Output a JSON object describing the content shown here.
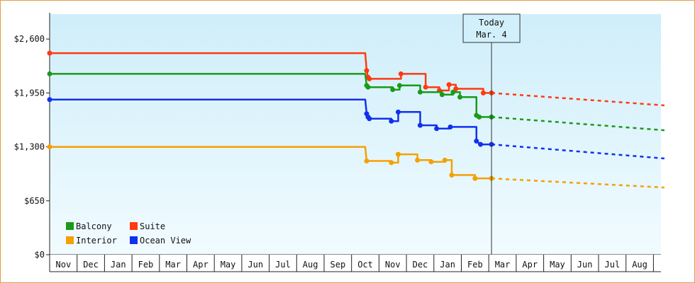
{
  "chart_data": {
    "type": "line",
    "title": "",
    "xlabel": "",
    "ylabel": "",
    "ylim": [
      0,
      2900
    ],
    "y_ticks": [
      "$0",
      "$650",
      "$1,300",
      "$1,950",
      "$2,600"
    ],
    "y_tick_values": [
      0,
      650,
      1300,
      1950,
      2600
    ],
    "x_months": [
      "Nov",
      "Dec",
      "Jan",
      "Feb",
      "Mar",
      "Apr",
      "May",
      "Jun",
      "Jul",
      "Aug",
      "Sep",
      "Oct",
      "Nov",
      "Dec",
      "Jan",
      "Feb",
      "Mar",
      "Apr",
      "May",
      "Jun",
      "Jul",
      "Aug"
    ],
    "today_label": [
      "Today",
      "Mar. 4"
    ],
    "today_month_index": 16.1,
    "series": [
      {
        "name": "Suite",
        "color": "#ff3a10",
        "points": [
          [
            0,
            2430
          ],
          [
            11.5,
            2430
          ],
          [
            11.55,
            2220
          ],
          [
            11.6,
            2140
          ],
          [
            11.65,
            2120
          ],
          [
            12.8,
            2120
          ],
          [
            12.8,
            2180
          ],
          [
            13.7,
            2180
          ],
          [
            13.7,
            2020
          ],
          [
            14.2,
            2020
          ],
          [
            14.2,
            1980
          ],
          [
            14.55,
            1980
          ],
          [
            14.55,
            2050
          ],
          [
            14.8,
            2050
          ],
          [
            14.8,
            2000
          ],
          [
            15.8,
            2000
          ],
          [
            15.8,
            1950
          ],
          [
            16.1,
            1950
          ]
        ],
        "forecast": [
          [
            16.1,
            1950
          ],
          [
            22.4,
            1800
          ]
        ]
      },
      {
        "name": "Balcony",
        "color": "#1a9a1a",
        "points": [
          [
            0,
            2180
          ],
          [
            11.5,
            2180
          ],
          [
            11.55,
            2040
          ],
          [
            11.6,
            2020
          ],
          [
            12.5,
            2020
          ],
          [
            12.5,
            1990
          ],
          [
            12.75,
            1990
          ],
          [
            12.75,
            2040
          ],
          [
            13.5,
            2040
          ],
          [
            13.5,
            1960
          ],
          [
            14.3,
            1960
          ],
          [
            14.3,
            1930
          ],
          [
            14.7,
            1930
          ],
          [
            14.7,
            1960
          ],
          [
            14.95,
            1960
          ],
          [
            14.95,
            1900
          ],
          [
            15.55,
            1900
          ],
          [
            15.55,
            1680
          ],
          [
            15.65,
            1660
          ],
          [
            16.1,
            1660
          ]
        ],
        "forecast": [
          [
            16.1,
            1660
          ],
          [
            22.4,
            1500
          ]
        ]
      },
      {
        "name": "Ocean View",
        "color": "#1030f0",
        "points": [
          [
            0,
            1870
          ],
          [
            11.5,
            1870
          ],
          [
            11.55,
            1700
          ],
          [
            11.6,
            1660
          ],
          [
            11.65,
            1640
          ],
          [
            12.45,
            1640
          ],
          [
            12.45,
            1610
          ],
          [
            12.7,
            1610
          ],
          [
            12.7,
            1720
          ],
          [
            13.5,
            1720
          ],
          [
            13.5,
            1560
          ],
          [
            14.1,
            1560
          ],
          [
            14.1,
            1520
          ],
          [
            14.6,
            1520
          ],
          [
            14.6,
            1540
          ],
          [
            15.55,
            1540
          ],
          [
            15.55,
            1370
          ],
          [
            15.7,
            1330
          ],
          [
            16.1,
            1330
          ]
        ],
        "forecast": [
          [
            16.1,
            1330
          ],
          [
            22.4,
            1160
          ]
        ]
      },
      {
        "name": "Interior",
        "color": "#f5a000",
        "points": [
          [
            0,
            1300
          ],
          [
            11.5,
            1300
          ],
          [
            11.55,
            1130
          ],
          [
            12.45,
            1130
          ],
          [
            12.45,
            1110
          ],
          [
            12.7,
            1110
          ],
          [
            12.7,
            1210
          ],
          [
            13.4,
            1210
          ],
          [
            13.4,
            1140
          ],
          [
            13.9,
            1140
          ],
          [
            13.9,
            1120
          ],
          [
            14.4,
            1120
          ],
          [
            14.4,
            1140
          ],
          [
            14.65,
            1140
          ],
          [
            14.65,
            960
          ],
          [
            15.5,
            960
          ],
          [
            15.5,
            920
          ],
          [
            16.1,
            920
          ]
        ],
        "forecast": [
          [
            16.1,
            920
          ],
          [
            22.4,
            810
          ]
        ]
      }
    ],
    "legend": [
      {
        "label": "Balcony",
        "color": "#1a9a1a"
      },
      {
        "label": "Suite",
        "color": "#ff3a10"
      },
      {
        "label": "Interior",
        "color": "#f5a000"
      },
      {
        "label": "Ocean View",
        "color": "#1030f0"
      }
    ],
    "legend_position": "bottom-left"
  }
}
